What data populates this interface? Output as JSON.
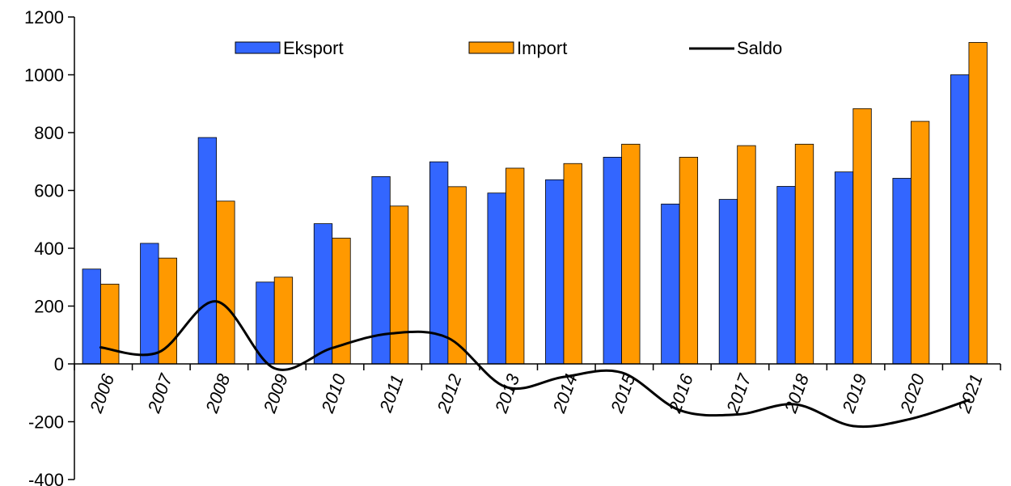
{
  "chart_data": {
    "type": "bar",
    "categories": [
      "2006",
      "2007",
      "2008",
      "2009",
      "2010",
      "2011",
      "2012",
      "2013",
      "2014",
      "2015",
      "2016",
      "2017",
      "2018",
      "2019",
      "2020",
      "2021"
    ],
    "series": [
      {
        "name": "Eksport",
        "type": "bar",
        "color": "#3366ff",
        "values": [
          328,
          417,
          783,
          283,
          485,
          648,
          699,
          591,
          637,
          715,
          553,
          569,
          614,
          664,
          642,
          1000
        ]
      },
      {
        "name": "Import",
        "type": "bar",
        "color": "#ff9900",
        "values": [
          276,
          366,
          563,
          300,
          435,
          546,
          613,
          677,
          693,
          760,
          715,
          755,
          760,
          883,
          839,
          1112
        ]
      },
      {
        "name": "Saldo",
        "type": "line",
        "color": "#000000",
        "values": [
          57,
          40,
          216,
          -15,
          55,
          105,
          90,
          -80,
          -45,
          -30,
          -160,
          -175,
          -140,
          -215,
          -190,
          -125
        ]
      }
    ],
    "ylim": [
      -400,
      1200
    ],
    "yticks": [
      1200,
      1000,
      800,
      600,
      400,
      200,
      0,
      -200,
      -400
    ],
    "grid": false,
    "legend_position": "top",
    "title": "",
    "xlabel": "",
    "ylabel": ""
  }
}
